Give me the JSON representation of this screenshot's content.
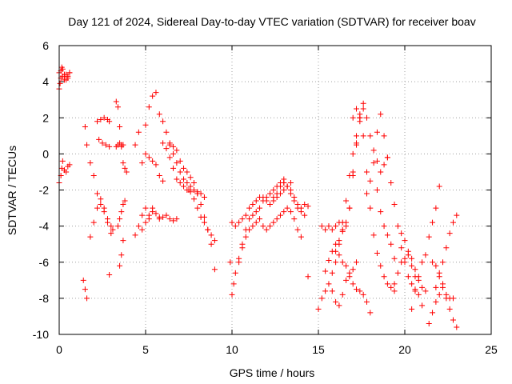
{
  "chart_data": {
    "type": "scatter",
    "title": "Day 121 of 2024, Sidereal Day-to-day VTEC variation (SDTVAR) for receiver boav",
    "xlabel": "GPS time / hours",
    "ylabel": "SDTVAR / TECUs",
    "xlim": [
      0,
      25
    ],
    "ylim": [
      -10,
      6
    ],
    "xticks": [
      0,
      5,
      10,
      15,
      20,
      25
    ],
    "yticks": [
      -10,
      -8,
      -6,
      -4,
      -2,
      0,
      2,
      4,
      6
    ],
    "xtick_labels": [
      "0",
      "5",
      "10",
      "15",
      "20",
      "25"
    ],
    "ytick_labels": [
      "-10",
      "-8",
      "-6",
      "-4",
      "-2",
      "0",
      "2",
      "4",
      "6"
    ],
    "grid": true,
    "marker": "+",
    "color": "#ff0000",
    "series": [
      {
        "name": "s1",
        "x": [
          0.0,
          0.1,
          0.2,
          0.3,
          0.4,
          0.5,
          0.6
        ],
        "y": [
          4.5,
          4.6,
          4.3,
          4.1,
          4.4,
          4.2,
          4.5
        ]
      },
      {
        "name": "s2",
        "x": [
          0.0,
          0.05,
          0.1,
          0.15,
          0.2,
          0.3,
          0.4,
          0.5,
          0.6
        ],
        "y": [
          3.6,
          3.9,
          4.2,
          4.8,
          4.7,
          4.4,
          4.1,
          4.3,
          4.5
        ]
      },
      {
        "name": "s3",
        "x": [
          0.0,
          0.1,
          0.15,
          0.2,
          0.3,
          0.4,
          0.5,
          0.6
        ],
        "y": [
          -1.6,
          -1.2,
          -0.8,
          -0.4,
          -0.9,
          -1.0,
          -0.7,
          -0.6
        ]
      },
      {
        "name": "s4",
        "x": [
          1.4,
          1.5,
          1.6
        ],
        "y": [
          -7.0,
          -7.5,
          -8.0
        ]
      },
      {
        "name": "s5",
        "x": [
          1.5,
          1.6,
          1.8,
          2.0,
          2.2,
          2.4,
          2.6,
          2.8,
          3.0,
          3.1
        ],
        "y": [
          1.5,
          0.5,
          -0.5,
          -1.2,
          -2.2,
          -2.8,
          -3.2,
          -3.6,
          -4.0,
          -4.2
        ]
      },
      {
        "name": "s6",
        "x": [
          1.8,
          2.0,
          2.2,
          2.4,
          2.6,
          2.8,
          3.0
        ],
        "y": [
          -4.6,
          -3.8,
          -3.0,
          -2.5,
          -3.0,
          -3.8,
          -4.4
        ]
      },
      {
        "name": "s7",
        "x": [
          2.2,
          2.4,
          2.6,
          2.8,
          2.9
        ],
        "y": [
          1.8,
          1.9,
          2.0,
          1.9,
          1.8
        ]
      },
      {
        "name": "s8",
        "x": [
          2.3,
          2.5,
          2.7,
          2.9
        ],
        "y": [
          0.8,
          0.6,
          0.5,
          0.4
        ]
      },
      {
        "name": "s9",
        "x": [
          2.9
        ],
        "y": [
          -6.7
        ]
      },
      {
        "name": "s10",
        "x": [
          3.3,
          3.4,
          3.5,
          3.6,
          3.7,
          3.8,
          3.9
        ],
        "y": [
          2.9,
          2.6,
          1.5,
          0.5,
          -0.5,
          -0.8,
          -1.0
        ]
      },
      {
        "name": "s11",
        "x": [
          3.3,
          3.4,
          3.5,
          3.6,
          3.7
        ],
        "y": [
          0.4,
          0.5,
          0.6,
          0.4,
          0.5
        ]
      },
      {
        "name": "s12",
        "x": [
          3.4,
          3.5,
          3.6,
          3.7,
          3.8
        ],
        "y": [
          -4.0,
          -3.6,
          -3.2,
          -2.8,
          -2.6
        ]
      },
      {
        "name": "s13",
        "x": [
          3.5,
          3.6,
          3.7
        ],
        "y": [
          -6.2,
          -5.6,
          -4.8
        ]
      },
      {
        "name": "s14",
        "x": [
          4.4,
          4.6,
          4.8,
          5.0,
          5.2,
          5.4,
          5.6
        ],
        "y": [
          0.5,
          1.2,
          -0.5,
          1.6,
          2.6,
          3.2,
          3.4
        ]
      },
      {
        "name": "s15",
        "x": [
          4.4,
          4.6,
          4.8,
          5.0,
          5.2,
          5.4
        ],
        "y": [
          -4.5,
          -4.0,
          -3.4,
          -3.0,
          -3.4,
          -3.0
        ]
      },
      {
        "name": "s16",
        "x": [
          4.8,
          5.0,
          5.2,
          5.4,
          5.6,
          5.8
        ],
        "y": [
          -4.2,
          -3.8,
          -3.6,
          -3.2,
          -3.3,
          -3.5
        ]
      },
      {
        "name": "s17",
        "x": [
          5.0,
          5.2,
          5.4,
          5.6,
          5.8,
          6.0
        ],
        "y": [
          0.0,
          -0.2,
          -0.4,
          -0.6,
          -1.2,
          -1.5
        ]
      },
      {
        "name": "s18",
        "x": [
          5.8,
          6.0,
          6.2,
          6.4,
          6.6,
          6.8
        ],
        "y": [
          -3.6,
          -3.5,
          -3.4,
          -3.6,
          -3.7,
          -3.6
        ]
      },
      {
        "name": "s19",
        "x": [
          5.8,
          6.0,
          6.2,
          6.4,
          6.6,
          6.8,
          7.0,
          7.2,
          7.4,
          7.6,
          7.8,
          8.0
        ],
        "y": [
          2.2,
          1.8,
          1.2,
          0.5,
          0.0,
          -0.5,
          -1.0,
          -1.4,
          -1.6,
          -1.8,
          -2.0,
          -2.2
        ]
      },
      {
        "name": "s20",
        "x": [
          6.0,
          6.2,
          6.4,
          6.6,
          6.8,
          7.0,
          7.2,
          7.4,
          7.6,
          7.8,
          8.0,
          8.2,
          8.4
        ],
        "y": [
          0.6,
          0.3,
          -0.2,
          -0.8,
          -1.4,
          -1.6,
          -1.8,
          -2.0,
          -2.1,
          -2.0,
          -2.1,
          -2.2,
          -2.4
        ]
      },
      {
        "name": "s21",
        "x": [
          6.4,
          6.6,
          6.8,
          7.0,
          7.2,
          7.4,
          7.6,
          7.8,
          8.0,
          8.2,
          8.4,
          8.6,
          8.8,
          9.0
        ],
        "y": [
          0.6,
          0.4,
          0.2,
          -0.4,
          -0.8,
          -1.0,
          -1.3,
          -1.6,
          -2.2,
          -2.8,
          -3.5,
          -4.2,
          -5.0,
          -6.4
        ]
      },
      {
        "name": "s22",
        "x": [
          7.5,
          7.8,
          8.0,
          8.2,
          8.4,
          8.6,
          8.8,
          9.0
        ],
        "y": [
          -2.0,
          -2.5,
          -3.0,
          -3.5,
          -3.8,
          -4.2,
          -4.5,
          -4.8
        ]
      },
      {
        "name": "s23",
        "x": [
          9.9,
          10.0,
          10.1,
          10.2,
          10.4,
          10.6,
          10.8,
          11.0,
          11.2,
          11.4,
          11.6,
          11.8,
          12.0,
          12.2,
          12.4,
          12.6,
          12.8,
          13.0
        ],
        "y": [
          -6.0,
          -7.8,
          -7.2,
          -6.6,
          -6.0,
          -5.0,
          -4.2,
          -3.6,
          -3.4,
          -3.2,
          -3.0,
          -2.6,
          -2.4,
          -2.2,
          -2.0,
          -1.8,
          -1.6,
          -1.4
        ]
      },
      {
        "name": "s24",
        "x": [
          10.0,
          10.2,
          10.4,
          10.6,
          10.8,
          11.0,
          11.2,
          11.4,
          11.6,
          11.8,
          12.0,
          12.2,
          12.4,
          12.6,
          12.8,
          13.0,
          13.2,
          13.4
        ],
        "y": [
          -3.8,
          -4.0,
          -3.8,
          -3.6,
          -3.4,
          -3.0,
          -2.8,
          -2.6,
          -2.4,
          -2.4,
          -2.6,
          -2.8,
          -2.6,
          -2.4,
          -2.2,
          -2.0,
          -1.8,
          -1.6
        ]
      },
      {
        "name": "s25",
        "x": [
          10.4,
          10.6,
          10.8,
          11.0,
          11.2,
          11.4,
          11.6,
          11.8,
          12.0,
          12.2,
          12.4,
          12.6,
          12.8,
          13.0,
          13.2,
          13.4,
          13.6,
          13.8,
          14.0
        ],
        "y": [
          -5.8,
          -5.2,
          -4.6,
          -4.2,
          -4.0,
          -3.8,
          -3.6,
          -4.0,
          -4.2,
          -4.0,
          -3.8,
          -3.6,
          -3.4,
          -3.2,
          -3.0,
          -3.2,
          -3.6,
          -4.2,
          -4.6
        ]
      },
      {
        "name": "s26",
        "x": [
          12.4,
          12.6,
          12.8,
          13.0,
          13.2,
          13.4,
          13.6,
          13.8,
          14.0,
          14.2,
          14.4
        ],
        "y": [
          -2.4,
          -2.2,
          -1.8,
          -1.6,
          -1.8,
          -2.2,
          -2.6,
          -3.0,
          -3.2,
          -3.4,
          -6.8
        ]
      },
      {
        "name": "s27",
        "x": [
          13.0,
          13.2,
          13.4,
          13.6,
          13.8,
          14.0,
          14.2,
          14.4
        ],
        "y": [
          -1.6,
          -1.8,
          -2.0,
          -2.4,
          -2.8,
          -3.0,
          -2.8,
          -2.9
        ]
      },
      {
        "name": "s28",
        "x": [
          15.0,
          15.2,
          15.4,
          15.6,
          15.8,
          16.0,
          16.2,
          16.4,
          16.6,
          16.8,
          17.0,
          17.2,
          17.4
        ],
        "y": [
          -8.6,
          -8.0,
          -7.6,
          -7.2,
          -6.6,
          -6.0,
          -5.0,
          -3.8,
          -2.6,
          -1.2,
          0.0,
          1.0,
          2.0
        ]
      },
      {
        "name": "s29",
        "x": [
          15.2,
          15.4,
          15.6,
          15.8,
          16.0,
          16.2,
          16.4,
          16.6,
          16.8,
          17.0,
          17.2,
          17.4
        ],
        "y": [
          -4.0,
          -4.2,
          -4.0,
          -4.2,
          -4.0,
          -3.8,
          -4.2,
          -4.0,
          -3.0,
          -1.0,
          0.5,
          1.8
        ]
      },
      {
        "name": "s30",
        "x": [
          15.4,
          15.6,
          15.8,
          16.0,
          16.2,
          16.4,
          16.6,
          16.8,
          17.0,
          17.2,
          17.4,
          17.6
        ],
        "y": [
          -6.5,
          -5.9,
          -5.4,
          -5.0,
          -4.8,
          -4.3,
          -3.8,
          -3.0,
          -1.2,
          0.6,
          2.2,
          2.5
        ]
      },
      {
        "name": "s31",
        "x": [
          15.8,
          16.0,
          16.2,
          16.4,
          16.6,
          16.8,
          17.0,
          17.2
        ],
        "y": [
          -7.6,
          -8.2,
          -8.4,
          -7.8,
          -7.0,
          -6.6,
          -6.4,
          -6.0
        ]
      },
      {
        "name": "s32",
        "x": [
          16.0,
          16.2,
          16.4,
          16.6,
          16.8,
          17.0,
          17.2,
          17.4,
          17.6,
          17.8,
          18.0
        ],
        "y": [
          -5.4,
          -5.6,
          -6.0,
          -6.2,
          -6.8,
          -7.2,
          -7.5,
          -7.6,
          -7.8,
          -8.2,
          -8.8
        ]
      },
      {
        "name": "s33",
        "x": [
          17.0,
          17.2,
          17.4,
          17.6,
          17.8,
          18.0,
          18.2,
          18.4,
          18.6,
          18.8,
          19.0,
          19.2,
          19.4
        ],
        "y": [
          2.0,
          2.5,
          2.0,
          1.0,
          -1.0,
          -3.0,
          -4.5,
          -5.5,
          -6.2,
          -6.8,
          -7.2,
          -7.4,
          -7.6
        ]
      },
      {
        "name": "s34",
        "x": [
          17.6,
          17.8,
          18.0,
          18.2,
          18.4,
          18.6,
          18.8,
          19.0,
          19.2,
          19.4
        ],
        "y": [
          2.8,
          2.0,
          1.0,
          -0.5,
          -2.0,
          -3.2,
          -4.0,
          -4.5,
          -5.0,
          -5.8
        ]
      },
      {
        "name": "s35",
        "x": [
          17.8,
          18.0,
          18.2,
          18.4,
          18.6,
          18.8,
          19.0
        ],
        "y": [
          -2.2,
          -1.5,
          0.2,
          1.2,
          2.2,
          1.0,
          -0.2
        ]
      },
      {
        "name": "s36",
        "x": [
          18.4,
          18.6,
          18.8,
          19.0,
          19.2,
          19.4,
          19.6,
          19.8,
          20.0,
          20.2,
          20.4,
          20.6
        ],
        "y": [
          -0.4,
          -1.0,
          -0.6,
          -0.2,
          -1.6,
          -2.8,
          -4.0,
          -5.2,
          -6.0,
          -6.8,
          -7.2,
          -7.5
        ]
      },
      {
        "name": "s37",
        "x": [
          19.4,
          19.6,
          19.8,
          20.0,
          20.2,
          20.4,
          20.6,
          20.8,
          21.0
        ],
        "y": [
          -7.2,
          -6.6,
          -6.0,
          -5.8,
          -5.4,
          -5.8,
          -6.4,
          -7.0,
          -7.4
        ]
      },
      {
        "name": "s38",
        "x": [
          19.8,
          20.0,
          20.2,
          20.4,
          20.6,
          20.8,
          21.0,
          21.2
        ],
        "y": [
          -4.4,
          -4.8,
          -5.6,
          -6.2,
          -6.8,
          -7.8,
          -8.4,
          -7.6
        ]
      },
      {
        "name": "s39",
        "x": [
          20.4,
          20.6,
          20.8,
          21.0,
          21.2,
          21.4,
          21.6,
          21.8,
          22.0
        ],
        "y": [
          -8.6,
          -7.6,
          -6.8,
          -6.0,
          -5.6,
          -4.6,
          -3.8,
          -3.0,
          -1.8
        ]
      },
      {
        "name": "s40",
        "x": [
          21.4,
          21.6,
          21.8,
          22.0,
          22.2,
          22.4,
          22.6,
          22.8
        ],
        "y": [
          -9.4,
          -8.8,
          -8.2,
          -7.8,
          -7.4,
          -7.8,
          -8.0,
          -8.0
        ]
      },
      {
        "name": "s41",
        "x": [
          21.6,
          21.8,
          22.0,
          22.2,
          22.4,
          22.6,
          22.8,
          23.0
        ],
        "y": [
          -6.0,
          -6.2,
          -6.6,
          -7.2,
          -8.0,
          -8.6,
          -9.2,
          -9.6
        ]
      },
      {
        "name": "s42",
        "x": [
          21.8,
          22.0,
          22.2,
          22.4,
          22.6,
          22.8,
          23.0
        ],
        "y": [
          -7.4,
          -6.8,
          -6.0,
          -5.2,
          -4.4,
          -3.8,
          -3.4
        ]
      }
    ]
  }
}
